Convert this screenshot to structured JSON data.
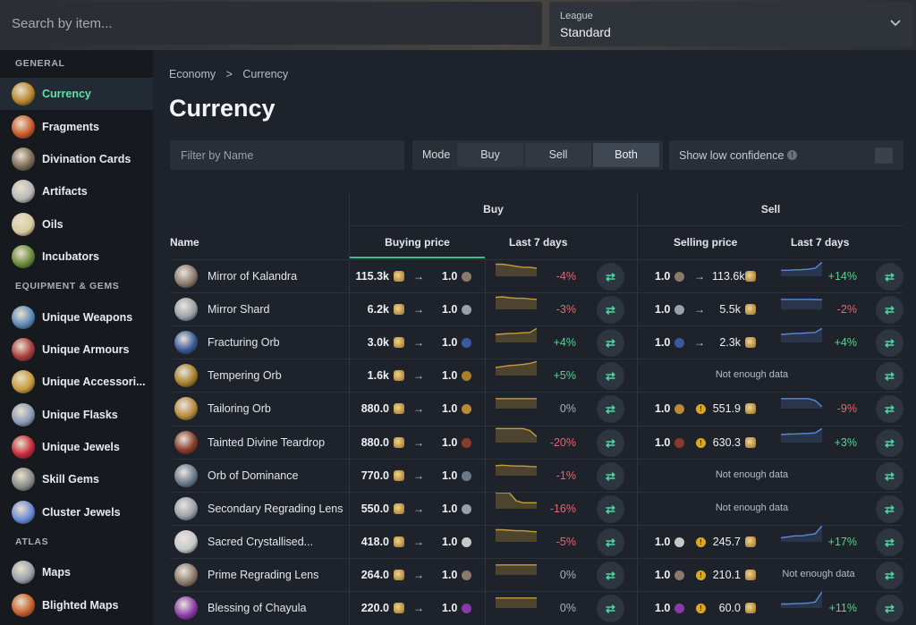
{
  "search": {
    "placeholder": "Search by item..."
  },
  "league": {
    "label": "League",
    "value": "Standard"
  },
  "sidebar": {
    "sections": [
      {
        "title": "GENERAL",
        "items": [
          {
            "label": "Currency",
            "icon": "currency-icon",
            "active": true,
            "color": "#b8862d"
          },
          {
            "label": "Fragments",
            "icon": "fragment-icon",
            "color": "#c85a2a"
          },
          {
            "label": "Divination Cards",
            "icon": "card-icon",
            "color": "#7a6a55"
          },
          {
            "label": "Artifacts",
            "icon": "artifact-icon",
            "color": "#b8b8b8"
          },
          {
            "label": "Oils",
            "icon": "oil-icon",
            "color": "#d8c9a0"
          },
          {
            "label": "Incubators",
            "icon": "incubator-icon",
            "color": "#6a8a3a"
          }
        ]
      },
      {
        "title": "EQUIPMENT & GEMS",
        "items": [
          {
            "label": "Unique Weapons",
            "icon": "weapon-icon",
            "color": "#5a8ab8"
          },
          {
            "label": "Unique Armours",
            "icon": "armour-icon",
            "color": "#a83a3a"
          },
          {
            "label": "Unique Accessori...",
            "icon": "accessory-icon",
            "color": "#c89a3a"
          },
          {
            "label": "Unique Flasks",
            "icon": "flask-icon",
            "color": "#8a9ab8"
          },
          {
            "label": "Unique Jewels",
            "icon": "jewel-icon",
            "color": "#c8283a"
          },
          {
            "label": "Skill Gems",
            "icon": "gem-icon",
            "color": "#8a8a8a"
          },
          {
            "label": "Cluster Jewels",
            "icon": "cluster-jewel-icon",
            "color": "#6a8ad8"
          }
        ]
      },
      {
        "title": "ATLAS",
        "items": [
          {
            "label": "Maps",
            "icon": "map-icon",
            "color": "#9aa0aa"
          },
          {
            "label": "Blighted Maps",
            "icon": "blighted-map-icon",
            "color": "#c8602a"
          }
        ]
      }
    ]
  },
  "breadcrumb": {
    "root": "Economy",
    "sep": ">",
    "current": "Currency"
  },
  "page_title": "Currency",
  "filter": {
    "placeholder": "Filter by Name"
  },
  "mode": {
    "label": "Mode",
    "options": [
      "Buy",
      "Sell",
      "Both"
    ],
    "selected": "Both"
  },
  "confidence": {
    "label": "Show low confidence",
    "info": "!"
  },
  "table": {
    "group_buy": "Buy",
    "group_sell": "Sell",
    "col_name": "Name",
    "col_buying": "Buying price",
    "col_last7": "Last 7 days",
    "col_selling": "Selling price",
    "col_last7_sell": "Last 7 days",
    "one": "1.0",
    "arrow": "→",
    "swap": "⇄",
    "no_data": "Not enough data",
    "warn": "!",
    "rows": [
      {
        "name": "Mirror of Kalandra",
        "color": "#8a7a6a",
        "buy": "115.3k",
        "buy_change": "-4%",
        "buy_trend": [
          6,
          6,
          5.5,
          5,
          4.5,
          4.5,
          4
        ],
        "sell_has": true,
        "sell_warn": false,
        "sell": "113.6k",
        "sell_change": "+14%",
        "sell_trend": [
          3,
          3,
          3.2,
          3.3,
          3.5,
          4,
          7
        ],
        "sell_arrow": true
      },
      {
        "name": "Mirror Shard",
        "color": "#9aa0a8",
        "buy": "6.2k",
        "buy_change": "-3%",
        "buy_trend": [
          6,
          6.2,
          5.8,
          5.5,
          5.5,
          5.2,
          5
        ],
        "sell_has": true,
        "sell_warn": false,
        "sell": "5.5k",
        "sell_change": "-2%",
        "sell_trend": [
          5,
          5,
          5,
          5,
          5,
          4.9,
          4.8
        ],
        "sell_arrow": true
      },
      {
        "name": "Fracturing Orb",
        "color": "#3a5a9a",
        "buy": "3.0k",
        "buy_change": "+4%",
        "buy_trend": [
          4,
          4.2,
          4.5,
          4.6,
          4.8,
          5,
          7
        ],
        "sell_has": true,
        "sell_warn": false,
        "sell": "2.3k",
        "sell_change": "+4%",
        "sell_trend": [
          4,
          4.2,
          4.5,
          4.6,
          4.8,
          5,
          7
        ],
        "sell_arrow": true
      },
      {
        "name": "Tempering Orb",
        "color": "#a8802a",
        "buy": "1.6k",
        "buy_change": "+5%",
        "buy_trend": [
          4,
          4.5,
          5,
          5.2,
          5.5,
          6,
          7
        ],
        "sell_has": false
      },
      {
        "name": "Tailoring Orb",
        "color": "#b88a3a",
        "buy": "880.0",
        "buy_change": "0%",
        "buy_trend": [
          5,
          5,
          5,
          5,
          5,
          5,
          5
        ],
        "sell_has": true,
        "sell_warn": true,
        "sell": "551.9",
        "sell_change": "-9%",
        "sell_trend": [
          5,
          5,
          5,
          5,
          5,
          4,
          1
        ]
      },
      {
        "name": "Tainted Divine Teardrop",
        "color": "#8a3a2a",
        "buy": "880.0",
        "buy_change": "-20%",
        "buy_trend": [
          7,
          7,
          7,
          7,
          7,
          6,
          3
        ],
        "sell_has": true,
        "sell_warn": true,
        "sell": "630.3",
        "sell_change": "+3%",
        "sell_trend": [
          4,
          4.2,
          4.3,
          4.5,
          4.6,
          4.8,
          7
        ]
      },
      {
        "name": "Orb of Dominance",
        "color": "#6a7a8a",
        "buy": "770.0",
        "buy_change": "-1%",
        "buy_trend": [
          5,
          5.2,
          5,
          4.8,
          4.8,
          4.6,
          4.5
        ],
        "sell_has": false
      },
      {
        "name": "Secondary Regrading Lens",
        "color": "#9aa0aa",
        "buy": "550.0",
        "buy_change": "-16%",
        "buy_trend": [
          8,
          8,
          8,
          4,
          3,
          3,
          3
        ],
        "sell_has": false
      },
      {
        "name": "Sacred Crystallised...",
        "color": "#c8c8c8",
        "buy": "418.0",
        "buy_change": "-5%",
        "buy_trend": [
          6,
          6,
          5.8,
          5.5,
          5.5,
          5.2,
          5
        ],
        "sell_has": true,
        "sell_warn": true,
        "sell": "245.7",
        "sell_change": "+17%",
        "sell_trend": [
          2,
          2.5,
          3,
          3,
          3.5,
          4,
          8
        ]
      },
      {
        "name": "Prime Regrading Lens",
        "color": "#8a7a6a",
        "buy": "264.0",
        "buy_change": "0%",
        "buy_trend": [
          5,
          5,
          5,
          5,
          5,
          5,
          5
        ],
        "sell_has": true,
        "sell_warn": true,
        "sell": "210.1",
        "sell_change": "",
        "sell_nodata": true
      },
      {
        "name": "Blessing of Chayula",
        "color": "#8a3aa8",
        "buy": "220.0",
        "buy_change": "0%",
        "buy_trend": [
          5,
          5,
          5,
          5,
          5,
          5,
          5
        ],
        "sell_has": true,
        "sell_warn": true,
        "sell": "60.0",
        "sell_change": "+11%",
        "sell_trend": [
          2,
          2,
          2.2,
          2.3,
          2.5,
          3,
          8
        ]
      }
    ]
  }
}
